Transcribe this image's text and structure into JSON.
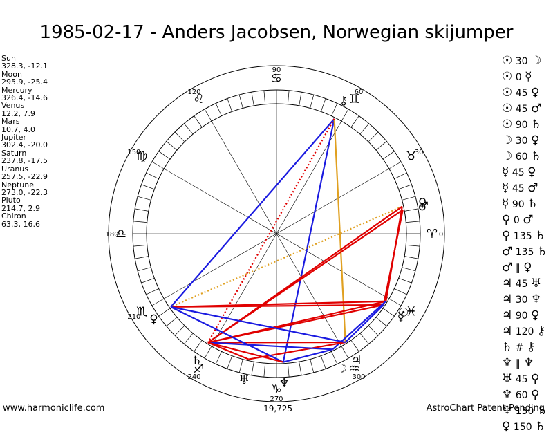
{
  "title": "1985-02-17 - Anders Jacobsen, Norwegian skijumper",
  "planets": [
    {
      "name": "Sun",
      "coords": "328.3, -12.1"
    },
    {
      "name": "Moon",
      "coords": "295.9, -25.4"
    },
    {
      "name": "Mercury",
      "coords": "326.4, -14.6"
    },
    {
      "name": "Venus",
      "coords": "12.2, 7.9"
    },
    {
      "name": "Mars",
      "coords": "10.7, 4.0"
    },
    {
      "name": "Jupiter",
      "coords": "302.4, -20.0"
    },
    {
      "name": "Saturn",
      "coords": "237.8, -17.5"
    },
    {
      "name": "Uranus",
      "coords": "257.5, -22.9"
    },
    {
      "name": "Neptune",
      "coords": "273.0, -22.3"
    },
    {
      "name": "Pluto",
      "coords": "214.7, 2.9"
    },
    {
      "name": "Chiron",
      "coords": "63.3, 16.6"
    }
  ],
  "aspects": [
    {
      "p1": "☉",
      "angle": "30",
      "p2": "☽"
    },
    {
      "p1": "☉",
      "angle": "0",
      "p2": "☿"
    },
    {
      "p1": "☉",
      "angle": "45",
      "p2": "♀"
    },
    {
      "p1": "☉",
      "angle": "45",
      "p2": "♂"
    },
    {
      "p1": "☉",
      "angle": "90",
      "p2": "♄"
    },
    {
      "p1": "☽",
      "angle": "30",
      "p2": "♀"
    },
    {
      "p1": "☽",
      "angle": "60",
      "p2": "♄"
    },
    {
      "p1": "☿",
      "angle": "45",
      "p2": "♀"
    },
    {
      "p1": "☿",
      "angle": "45",
      "p2": "♂"
    },
    {
      "p1": "☿",
      "angle": "90",
      "p2": "♄"
    },
    {
      "p1": "♀",
      "angle": "0",
      "p2": "♂"
    },
    {
      "p1": "♀",
      "angle": "135",
      "p2": "♄"
    },
    {
      "p1": "♂",
      "angle": "135",
      "p2": "♄"
    },
    {
      "p1": "♂",
      "angle": "∥",
      "p2": "♀"
    },
    {
      "p1": "♃",
      "angle": "45",
      "p2": "♅"
    },
    {
      "p1": "♃",
      "angle": "30",
      "p2": "♆"
    },
    {
      "p1": "♃",
      "angle": "90",
      "p2": "♀"
    },
    {
      "p1": "♃",
      "angle": "120",
      "p2": "⚷"
    },
    {
      "p1": "♄",
      "angle": "#",
      "p2": "⚷"
    },
    {
      "p1": "♆",
      "angle": "∥",
      "p2": "♆"
    },
    {
      "p1": "♅",
      "angle": "45",
      "p2": "♀"
    },
    {
      "p1": "♆",
      "angle": "60",
      "p2": "♀"
    },
    {
      "p1": "♆",
      "angle": "150",
      "p2": "♄"
    },
    {
      "p1": "♀",
      "angle": "150",
      "p2": "♄"
    }
  ],
  "degree_labels": [
    "90",
    "60",
    "30",
    "0",
    "120",
    "150",
    "180",
    "210",
    "240",
    "270",
    "300"
  ],
  "zodiac_signs": [
    {
      "glyph": "♈",
      "lon": 0
    },
    {
      "glyph": "♉",
      "lon": 30
    },
    {
      "glyph": "♊",
      "lon": 60
    },
    {
      "glyph": "♋",
      "lon": 90
    },
    {
      "glyph": "♌",
      "lon": 120
    },
    {
      "glyph": "♍",
      "lon": 150
    },
    {
      "glyph": "♎",
      "lon": 180
    },
    {
      "glyph": "♏",
      "lon": 210
    },
    {
      "glyph": "♐",
      "lon": 240
    },
    {
      "glyph": "♑",
      "lon": 270
    },
    {
      "glyph": "♒",
      "lon": 300
    },
    {
      "glyph": "♓",
      "lon": 330
    }
  ],
  "wheel_planets": [
    {
      "glyph": "☉",
      "lon": 328.3
    },
    {
      "glyph": "☽",
      "lon": 295.9
    },
    {
      "glyph": "☿",
      "lon": 326.4
    },
    {
      "glyph": "♀",
      "lon": 12.2
    },
    {
      "glyph": "♂",
      "lon": 10.7
    },
    {
      "glyph": "♃",
      "lon": 302.4
    },
    {
      "glyph": "♄",
      "lon": 237.8
    },
    {
      "glyph": "♅",
      "lon": 257.5
    },
    {
      "glyph": "♆",
      "lon": 273.0
    },
    {
      "glyph": "♀",
      "lon": 214.7
    },
    {
      "glyph": "⚷",
      "lon": 63.3
    }
  ],
  "aspect_lines": [
    {
      "from": 63.3,
      "to": 214.7,
      "color": "#1a1ae0",
      "style": "solid"
    },
    {
      "from": 63.3,
      "to": 273.0,
      "color": "#1a1ae0",
      "style": "solid"
    },
    {
      "from": 63.3,
      "to": 302.4,
      "color": "#e0a020",
      "style": "solid"
    },
    {
      "from": 63.3,
      "to": 237.8,
      "color": "#e00000",
      "style": "dotted"
    },
    {
      "from": 12.2,
      "to": 214.7,
      "color": "#e0a020",
      "style": "dotted"
    },
    {
      "from": 12.2,
      "to": 328.3,
      "color": "#e00000",
      "style": "solid"
    },
    {
      "from": 10.7,
      "to": 326.4,
      "color": "#e00000",
      "style": "solid"
    },
    {
      "from": 12.2,
      "to": 237.8,
      "color": "#e00000",
      "style": "solid"
    },
    {
      "from": 10.7,
      "to": 237.8,
      "color": "#e00000",
      "style": "solid"
    },
    {
      "from": 328.3,
      "to": 214.7,
      "color": "#e00000",
      "style": "solid"
    },
    {
      "from": 326.4,
      "to": 214.7,
      "color": "#e00000",
      "style": "solid"
    },
    {
      "from": 328.3,
      "to": 237.8,
      "color": "#e00000",
      "style": "solid"
    },
    {
      "from": 326.4,
      "to": 237.8,
      "color": "#e00000",
      "style": "solid"
    },
    {
      "from": 328.3,
      "to": 295.9,
      "color": "#1a1ae0",
      "style": "solid"
    },
    {
      "from": 326.4,
      "to": 302.4,
      "color": "#1a1ae0",
      "style": "solid"
    },
    {
      "from": 302.4,
      "to": 237.8,
      "color": "#e00000",
      "style": "solid"
    },
    {
      "from": 302.4,
      "to": 257.5,
      "color": "#e00000",
      "style": "solid"
    },
    {
      "from": 302.4,
      "to": 214.7,
      "color": "#1a1ae0",
      "style": "solid"
    },
    {
      "from": 295.9,
      "to": 237.8,
      "color": "#1a1ae0",
      "style": "solid"
    },
    {
      "from": 273.0,
      "to": 214.7,
      "color": "#1a1ae0",
      "style": "solid"
    },
    {
      "from": 273.0,
      "to": 295.9,
      "color": "#1a1ae0",
      "style": "solid"
    },
    {
      "from": 257.5,
      "to": 237.8,
      "color": "#e00000",
      "style": "solid"
    },
    {
      "from": 273.0,
      "to": 237.8,
      "color": "#e00000",
      "style": "solid"
    }
  ],
  "bottom_readout": "-19,725",
  "footer_left": "www.harmoniclife.com",
  "footer_right": "AstroChart Patent Pending",
  "colors": {
    "red": "#e00000",
    "blue": "#1a1ae0",
    "orange": "#e0a020"
  }
}
